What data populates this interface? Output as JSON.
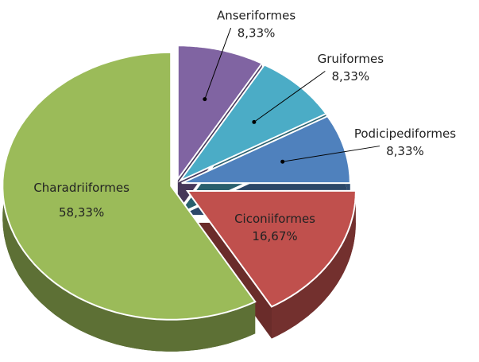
{
  "chart_data": {
    "type": "pie",
    "categories": [
      "Anseriformes",
      "Gruiformes",
      "Podicipediformes",
      "Ciconiiformes",
      "Charadriiformes"
    ],
    "values": [
      8.33,
      8.33,
      8.33,
      16.67,
      58.33
    ],
    "value_labels": [
      "8,33%",
      "8,33%",
      "8,33%",
      "16,67%",
      "58,33%"
    ],
    "colors": [
      "#8064a2",
      "#4bacc6",
      "#4f81bd",
      "#c0504d",
      "#9bbb59"
    ]
  }
}
